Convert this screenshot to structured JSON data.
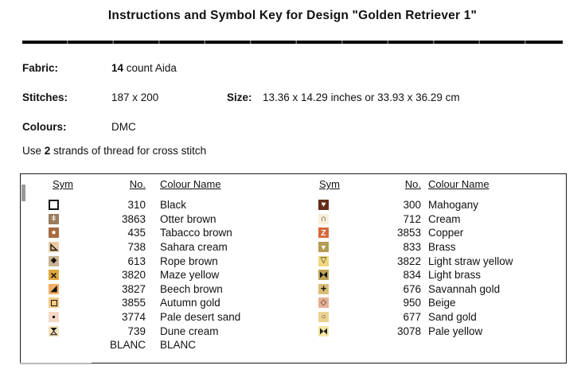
{
  "page": {
    "title": "Instructions and Symbol Key for Design \"Golden Retriever 1\""
  },
  "details": {
    "fabric_label": "Fabric:",
    "fabric_bold": "14",
    "fabric_rest": " count Aida",
    "stitches_label": "Stitches:",
    "stitches_value": "187 x 200",
    "size_label": "Size:",
    "size_value": "13.36 x 14.29 inches or 33.93 x 36.29 cm",
    "colours_label": "Colours:",
    "colours_value": "DMC",
    "strands_prefix": "Use ",
    "strands_bold": "2",
    "strands_rest": " strands of thread for cross stitch"
  },
  "key_table": {
    "headers": {
      "sym": "Sym",
      "no": "No.",
      "name": "Colour Name"
    },
    "left_rows": [
      {
        "no": "310",
        "name": "Black",
        "sym": {
          "shape": "box-outline",
          "bg": "#ffffff",
          "fg": "#151515"
        }
      },
      {
        "no": "3863",
        "name": "Otter brown",
        "sym": {
          "shape": "text",
          "glyph": "ǂ",
          "bg": "#9b7a5d",
          "fg": "#ffffff"
        }
      },
      {
        "no": "435",
        "name": "Tabacco brown",
        "sym": {
          "shape": "text",
          "glyph": "●",
          "bg": "#a76a41",
          "fg": "#ffffff"
        }
      },
      {
        "no": "738",
        "name": "Sahara cream",
        "sym": {
          "shape": "tri-lower-left",
          "bg": "#eccaa2",
          "fg": "#151515"
        }
      },
      {
        "no": "613",
        "name": "Rope brown",
        "sym": {
          "shape": "text",
          "glyph": "◆",
          "bg": "#c9b494",
          "fg": "#151515"
        }
      },
      {
        "no": "3820",
        "name": "Maze yellow",
        "sym": {
          "shape": "text",
          "glyph": "×",
          "bold": true,
          "bg": "#e0a83d",
          "fg": "#151515"
        }
      },
      {
        "no": "3827",
        "name": "Beech brown",
        "sym": {
          "shape": "text",
          "glyph": "◢",
          "bg": "#f2ae63",
          "fg": "#151515"
        }
      },
      {
        "no": "3855",
        "name": "Autumn gold",
        "sym": {
          "shape": "rect-outline",
          "bg": "#f7ca85",
          "fg": "#151515"
        }
      },
      {
        "no": "3774",
        "name": "Pale desert sand",
        "sym": {
          "shape": "dot",
          "bg": "#f4d8c3",
          "fg": "#151515"
        }
      },
      {
        "no": "739",
        "name": "Dune cream",
        "sym": {
          "shape": "hourglass",
          "bg": "#f3e2bd",
          "fg": "#151515"
        }
      },
      {
        "no": "BLANC",
        "name": "BLANC",
        "sym": {
          "shape": "none",
          "bg": "#ffffff",
          "fg": "#ffffff"
        }
      }
    ],
    "right_rows": [
      {
        "no": "300",
        "name": "Mahogany",
        "sym": {
          "shape": "text",
          "glyph": "♥",
          "bg": "#662c19",
          "fg": "#ffffff"
        }
      },
      {
        "no": "712",
        "name": "Cream",
        "sym": {
          "shape": "text",
          "glyph": "∩",
          "bold": true,
          "bg": "#f8f0da",
          "fg": "#52260e"
        }
      },
      {
        "no": "3853",
        "name": "Copper",
        "sym": {
          "shape": "text",
          "glyph": "Z",
          "bold": true,
          "bg": "#d7693b",
          "fg": "#ffffff"
        }
      },
      {
        "no": "833",
        "name": "Brass",
        "sym": {
          "shape": "text",
          "glyph": "▼",
          "bg": "#b39d52",
          "fg": "#ffffff"
        }
      },
      {
        "no": "3822",
        "name": "Light straw yellow",
        "sym": {
          "shape": "text",
          "glyph": "▽",
          "bg": "#f0d87e",
          "fg": "#151515"
        }
      },
      {
        "no": "834",
        "name": "Light brass",
        "sym": {
          "shape": "bowtie",
          "bg": "#bfa458",
          "fg": "#151515"
        }
      },
      {
        "no": "676",
        "name": "Savannah gold",
        "sym": {
          "shape": "text",
          "glyph": "+",
          "bold": true,
          "bg": "#dcbd78",
          "fg": "#151515"
        }
      },
      {
        "no": "950",
        "name": "Beige",
        "sym": {
          "shape": "text",
          "glyph": "◇",
          "bg": "#e8b093",
          "fg": "#2b2b3a"
        }
      },
      {
        "no": "677",
        "name": "Sand gold",
        "sym": {
          "shape": "text",
          "glyph": "○",
          "bg": "#ecd392",
          "fg": "#3c3118"
        }
      },
      {
        "no": "3078",
        "name": "Pale yellow",
        "sym": {
          "shape": "bowtie",
          "bg": "#f4e8a4",
          "fg": "#222222"
        }
      }
    ]
  }
}
